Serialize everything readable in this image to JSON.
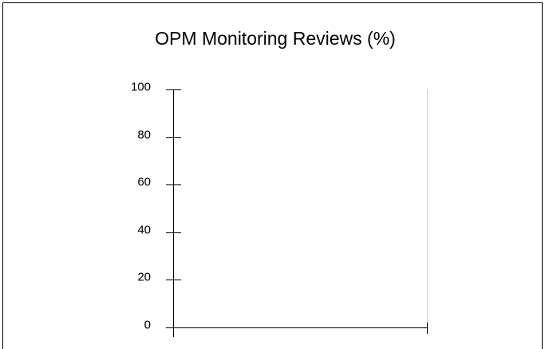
{
  "chart_data": {
    "type": "bar",
    "title": "OPM Monitoring Reviews (%)",
    "ylim": [
      0,
      100
    ],
    "yticks": [
      0,
      20,
      40,
      60,
      80,
      100
    ]
  }
}
